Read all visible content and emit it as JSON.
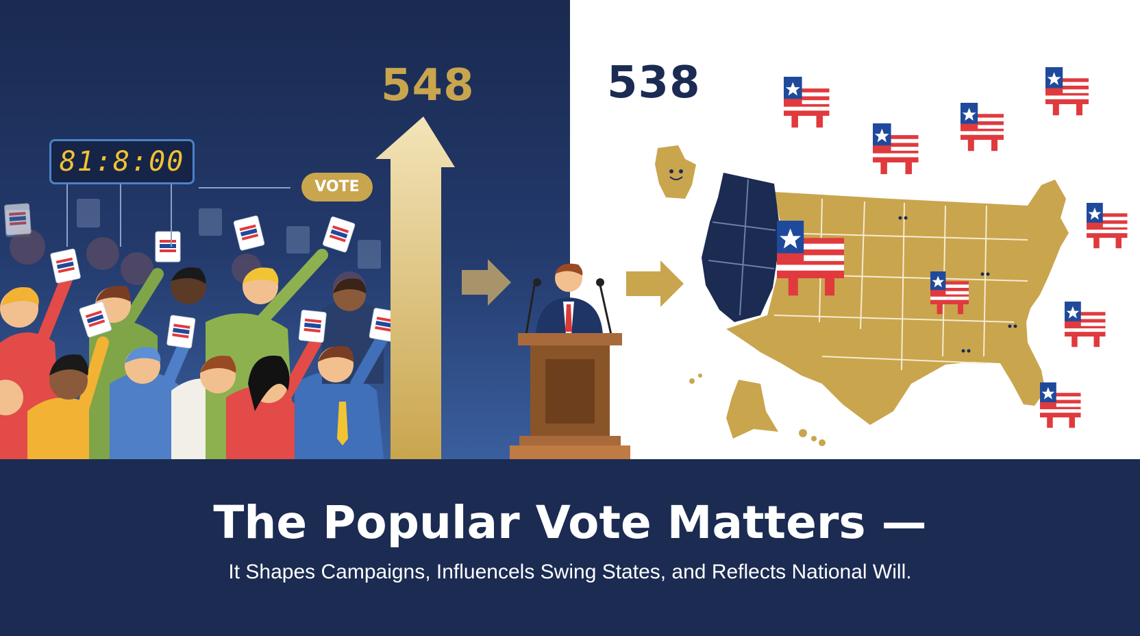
{
  "headline": {
    "title": "The Popular Vote Matters —",
    "subtitle": "It Shapes Campaigns, Influencels Swing States, and Reflects National Will."
  },
  "left": {
    "big_number": "548",
    "clock_text": "81:8:00",
    "vote_label": "VOTE"
  },
  "right": {
    "big_number": "538"
  },
  "colors": {
    "navy": "#1b2b52",
    "gold": "#c9a54e",
    "flag_red": "#e03a3e",
    "flag_blue": "#1f4a9c",
    "white": "#ffffff"
  },
  "icons": [
    "ballot-icon",
    "flag-state-icon",
    "podium-icon",
    "arrow-right-icon",
    "arrow-up-icon",
    "us-map"
  ]
}
